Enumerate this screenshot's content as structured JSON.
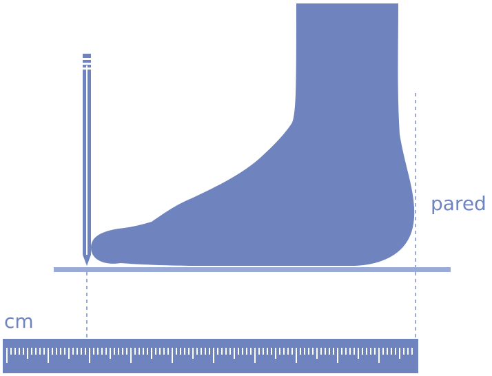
{
  "diagram": {
    "wall_label": "pared",
    "unit_label": "cm",
    "colors": {
      "primary": "#6f84bf",
      "background": "#ffffff",
      "dotted_guide": "#9aaad6"
    },
    "icons": [
      "foot-silhouette-icon",
      "pencil-icon",
      "ruler-icon"
    ]
  }
}
